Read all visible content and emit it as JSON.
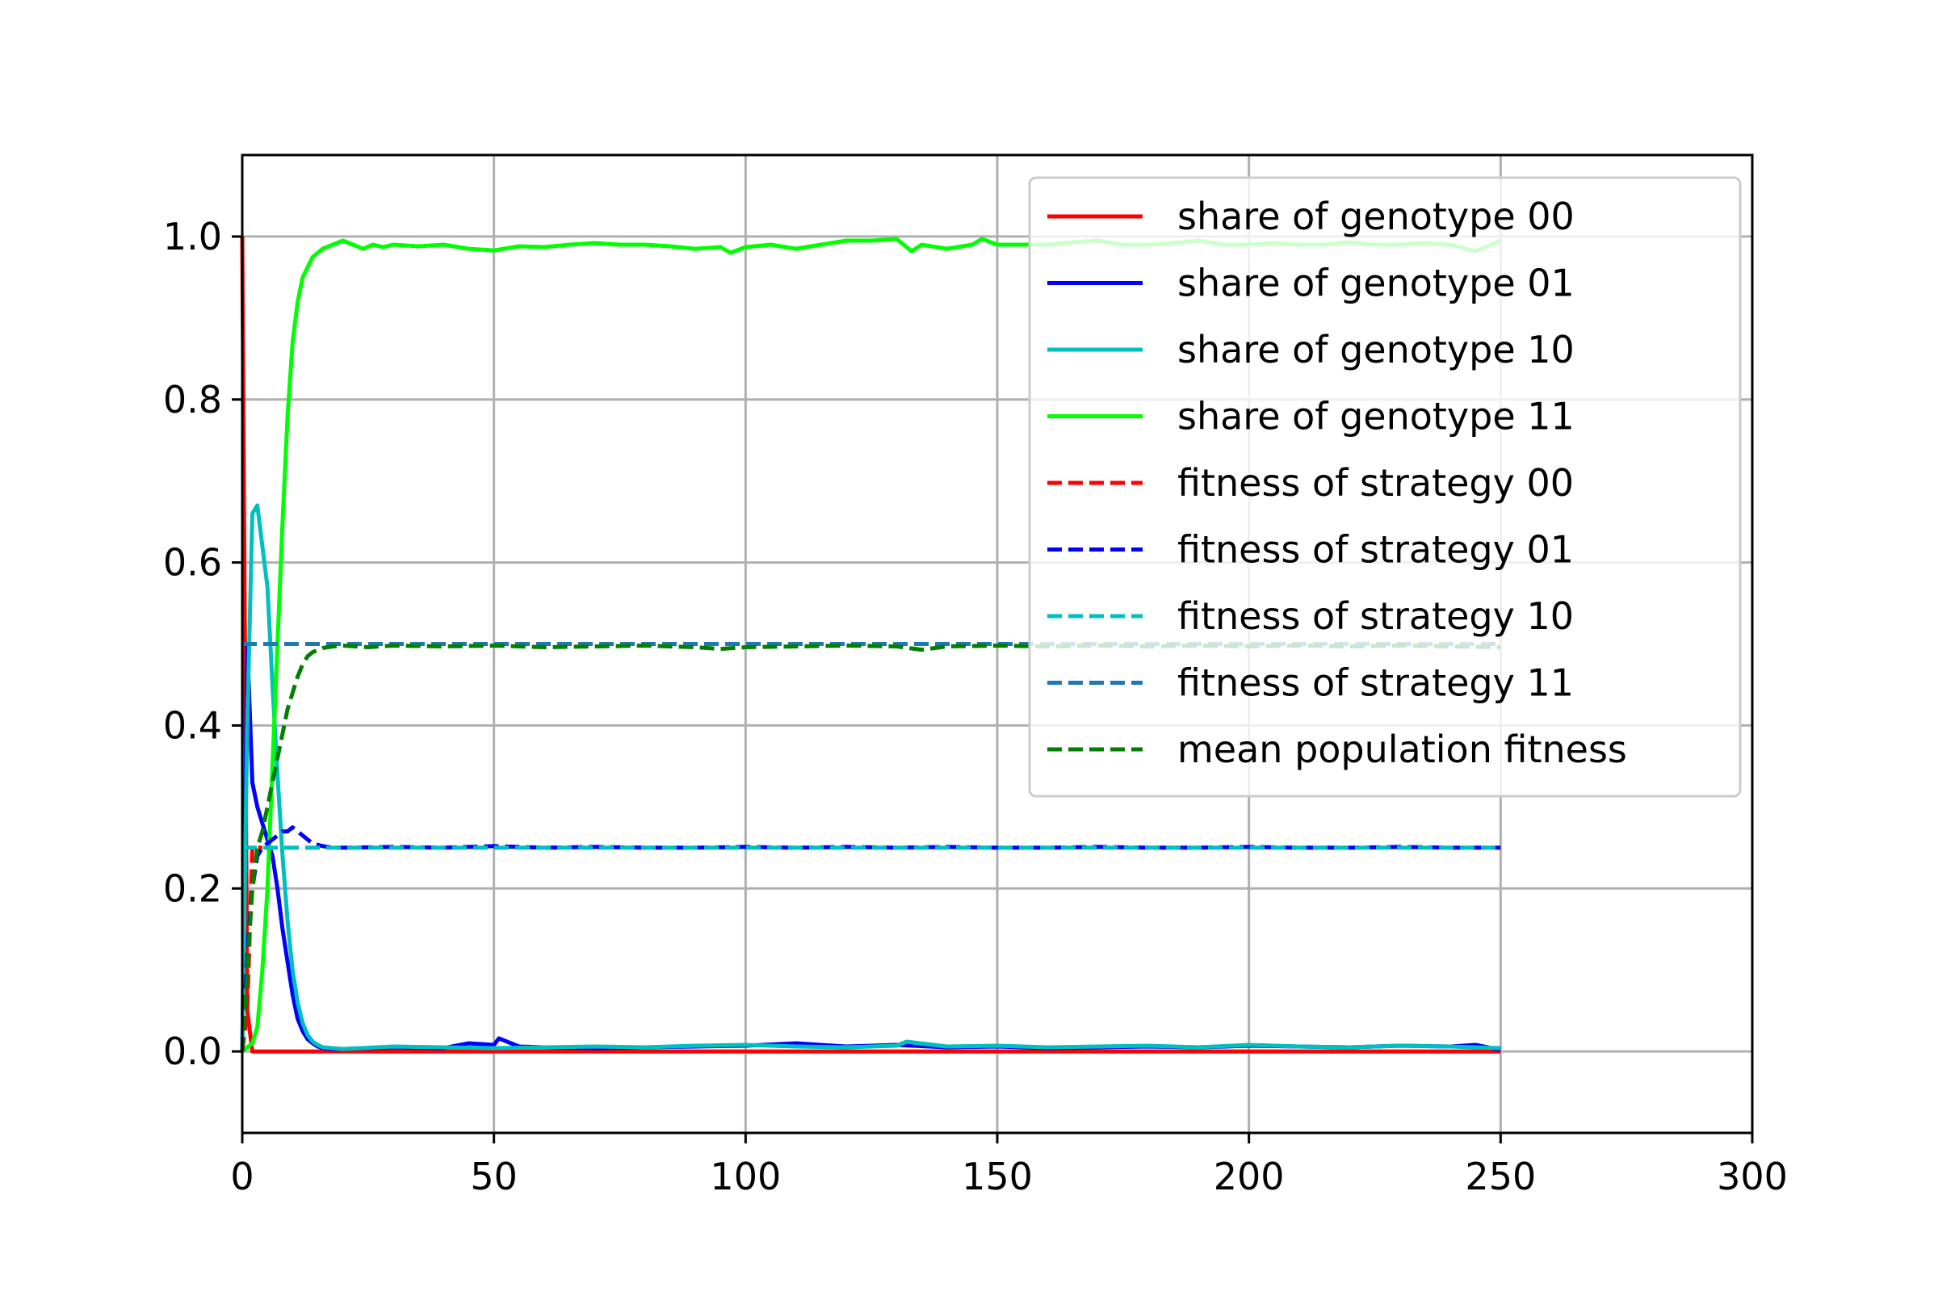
{
  "chart_data": {
    "type": "line",
    "title": "",
    "xlabel": "",
    "ylabel": "",
    "xlim": [
      0,
      300
    ],
    "ylim": [
      -0.1,
      1.1
    ],
    "xticks": [
      0,
      50,
      100,
      150,
      200,
      250,
      300
    ],
    "xtick_labels": [
      "0",
      "50",
      "100",
      "150",
      "200",
      "250",
      "300"
    ],
    "yticks": [
      0.0,
      0.2,
      0.4,
      0.6,
      0.8,
      1.0
    ],
    "ytick_labels": [
      "0.0",
      "0.2",
      "0.4",
      "0.6",
      "0.8",
      "1.0"
    ],
    "grid": true,
    "legend_position": "upper right",
    "series": [
      {
        "name": "share of genotype 00",
        "color": "#ff0000",
        "style": "solid",
        "x": [
          0,
          1,
          2,
          3,
          5,
          250
        ],
        "y": [
          1.0,
          0.05,
          0.0,
          0.0,
          0.0,
          0.0
        ]
      },
      {
        "name": "share of genotype 01",
        "color": "#0000ff",
        "style": "solid",
        "x": [
          0,
          1,
          2,
          3,
          4,
          5,
          6,
          7,
          8,
          9,
          10,
          11,
          12,
          13,
          14,
          15,
          16,
          18,
          20,
          25,
          30,
          40,
          45,
          50,
          51,
          55,
          60,
          70,
          80,
          90,
          100,
          110,
          120,
          130,
          140,
          150,
          160,
          170,
          180,
          190,
          200,
          210,
          220,
          230,
          240,
          245,
          250
        ],
        "y": [
          0.0,
          0.5,
          0.33,
          0.3,
          0.28,
          0.26,
          0.24,
          0.2,
          0.15,
          0.11,
          0.07,
          0.04,
          0.025,
          0.015,
          0.01,
          0.006,
          0.004,
          0.003,
          0.003,
          0.004,
          0.005,
          0.004,
          0.01,
          0.008,
          0.016,
          0.006,
          0.005,
          0.004,
          0.005,
          0.006,
          0.007,
          0.01,
          0.006,
          0.008,
          0.005,
          0.006,
          0.004,
          0.005,
          0.006,
          0.005,
          0.007,
          0.006,
          0.005,
          0.007,
          0.006,
          0.008,
          0.002
        ]
      },
      {
        "name": "share of genotype 10",
        "color": "#00bfbf",
        "style": "solid",
        "x": [
          0,
          1,
          2,
          3,
          4,
          5,
          6,
          7,
          8,
          9,
          10,
          11,
          12,
          13,
          14,
          15,
          16,
          18,
          20,
          30,
          40,
          50,
          60,
          70,
          80,
          90,
          100,
          110,
          120,
          130,
          132,
          140,
          150,
          160,
          170,
          180,
          190,
          200,
          210,
          220,
          230,
          240,
          250
        ],
        "y": [
          0.0,
          0.4,
          0.66,
          0.67,
          0.62,
          0.57,
          0.45,
          0.34,
          0.24,
          0.16,
          0.1,
          0.06,
          0.035,
          0.02,
          0.012,
          0.008,
          0.005,
          0.004,
          0.003,
          0.006,
          0.005,
          0.004,
          0.005,
          0.006,
          0.005,
          0.007,
          0.008,
          0.006,
          0.005,
          0.007,
          0.012,
          0.006,
          0.007,
          0.005,
          0.006,
          0.007,
          0.005,
          0.008,
          0.006,
          0.005,
          0.007,
          0.006,
          0.004
        ]
      },
      {
        "name": "share of genotype 11",
        "color": "#00ff00",
        "style": "solid",
        "x": [
          0,
          1,
          2,
          3,
          4,
          5,
          6,
          7,
          8,
          9,
          10,
          11,
          12,
          14,
          16,
          18,
          20,
          22,
          24,
          26,
          28,
          30,
          35,
          40,
          45,
          50,
          55,
          60,
          65,
          70,
          75,
          80,
          85,
          90,
          95,
          97,
          100,
          105,
          110,
          115,
          120,
          125,
          130,
          133,
          135,
          140,
          145,
          147,
          150,
          155,
          160,
          165,
          170,
          175,
          180,
          185,
          190,
          195,
          200,
          205,
          210,
          215,
          220,
          225,
          230,
          235,
          240,
          245,
          250
        ],
        "y": [
          0.0,
          0.005,
          0.01,
          0.03,
          0.1,
          0.2,
          0.35,
          0.5,
          0.65,
          0.78,
          0.87,
          0.92,
          0.95,
          0.975,
          0.985,
          0.99,
          0.995,
          0.99,
          0.985,
          0.99,
          0.987,
          0.99,
          0.988,
          0.99,
          0.985,
          0.983,
          0.988,
          0.987,
          0.99,
          0.992,
          0.99,
          0.99,
          0.988,
          0.985,
          0.987,
          0.98,
          0.987,
          0.99,
          0.985,
          0.99,
          0.995,
          0.995,
          0.997,
          0.982,
          0.99,
          0.985,
          0.99,
          0.997,
          0.99,
          0.99,
          0.99,
          0.993,
          0.995,
          0.99,
          0.99,
          0.992,
          0.995,
          0.99,
          0.99,
          0.992,
          0.99,
          0.99,
          0.993,
          0.99,
          0.99,
          0.992,
          0.99,
          0.982,
          0.995
        ]
      },
      {
        "name": "fitness of strategy 00",
        "color": "#ff0000",
        "style": "dashed",
        "x": [
          0,
          1,
          2,
          3,
          4
        ],
        "y": [
          0.0,
          0.05,
          0.25,
          0.25,
          0.25
        ]
      },
      {
        "name": "fitness of strategy 01",
        "color": "#0000ff",
        "style": "dashed",
        "x": [
          0,
          1,
          2,
          3,
          4,
          5,
          6,
          7,
          8,
          9,
          10,
          11,
          12,
          13,
          14,
          16,
          18,
          20,
          30,
          40,
          50,
          60,
          70,
          80,
          90,
          100,
          110,
          120,
          130,
          140,
          150,
          160,
          170,
          180,
          190,
          200,
          210,
          220,
          230,
          240,
          250
        ],
        "y": [
          0.0,
          0.12,
          0.2,
          0.24,
          0.25,
          0.255,
          0.26,
          0.265,
          0.27,
          0.27,
          0.275,
          0.27,
          0.265,
          0.26,
          0.255,
          0.252,
          0.25,
          0.25,
          0.251,
          0.25,
          0.252,
          0.25,
          0.251,
          0.25,
          0.25,
          0.251,
          0.25,
          0.251,
          0.25,
          0.251,
          0.25,
          0.25,
          0.251,
          0.25,
          0.25,
          0.251,
          0.25,
          0.25,
          0.251,
          0.25,
          0.25
        ]
      },
      {
        "name": "fitness of strategy 10",
        "color": "#00bfbf",
        "style": "dashed",
        "x": [
          0,
          1,
          2,
          5,
          10,
          20,
          50,
          100,
          150,
          200,
          250
        ],
        "y": [
          0.25,
          0.25,
          0.25,
          0.25,
          0.25,
          0.25,
          0.25,
          0.25,
          0.25,
          0.25,
          0.25
        ]
      },
      {
        "name": "fitness of strategy 11",
        "color": "#1f77b4",
        "style": "dashed",
        "x": [
          0,
          250
        ],
        "y": [
          0.5,
          0.5
        ]
      },
      {
        "name": "mean population fitness",
        "color": "#007f00",
        "style": "dashed",
        "x": [
          0,
          1,
          2,
          3,
          4,
          5,
          6,
          7,
          8,
          9,
          10,
          11,
          12,
          13,
          14,
          16,
          18,
          20,
          25,
          30,
          40,
          50,
          60,
          70,
          80,
          90,
          95,
          100,
          110,
          120,
          130,
          135,
          140,
          150,
          160,
          170,
          180,
          190,
          200,
          210,
          220,
          230,
          240,
          250
        ],
        "y": [
          0.0,
          0.1,
          0.2,
          0.25,
          0.27,
          0.3,
          0.33,
          0.36,
          0.39,
          0.42,
          0.44,
          0.46,
          0.475,
          0.485,
          0.49,
          0.495,
          0.497,
          0.498,
          0.496,
          0.498,
          0.497,
          0.498,
          0.496,
          0.497,
          0.498,
          0.496,
          0.494,
          0.496,
          0.497,
          0.498,
          0.497,
          0.493,
          0.497,
          0.498,
          0.497,
          0.498,
          0.497,
          0.498,
          0.497,
          0.498,
          0.497,
          0.498,
          0.497,
          0.496
        ]
      }
    ]
  }
}
